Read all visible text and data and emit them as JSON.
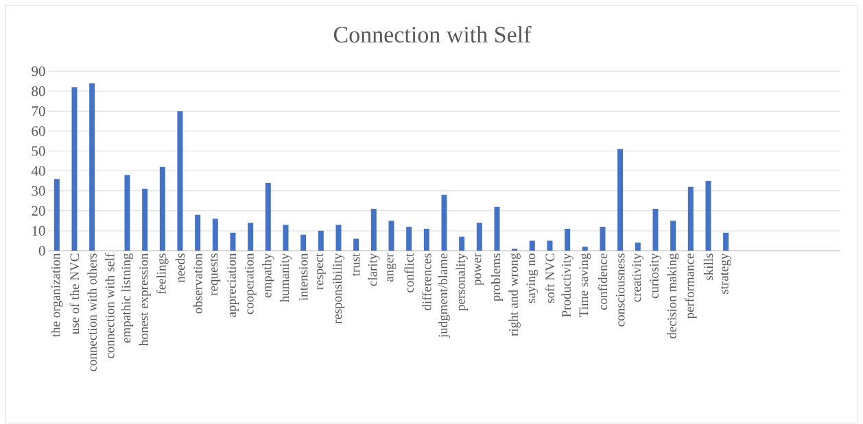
{
  "chart_data": {
    "type": "bar",
    "title": "Connection with Self",
    "color": "#4472c4",
    "categories": [
      "the organization",
      "use of the NVC",
      "connection with others",
      "connection with self",
      "empathic listning",
      "honest expression",
      "feelings",
      "needs",
      "observation",
      "requests",
      "appreciation",
      "cooperation",
      "empathy",
      "humanity",
      "intension",
      "respect",
      "responsibility",
      "trust",
      "clarity",
      "anger",
      "conflict",
      "differences",
      "judgment/blame",
      "personality",
      "power",
      "problems",
      "right and wrong",
      "saying no",
      "soft NVC",
      "Productivity",
      "Time saving",
      "confidence",
      "consciousness",
      "creativity",
      "curiosity",
      "decision making",
      "performance",
      "skills",
      "strategy",
      null,
      null,
      null,
      null,
      null,
      null
    ],
    "values": [
      36,
      82,
      84,
      0,
      38,
      31,
      42,
      70,
      18,
      16,
      9,
      14,
      34,
      13,
      8,
      10,
      13,
      6,
      21,
      15,
      12,
      11,
      28,
      7,
      14,
      22,
      1,
      5,
      5,
      11,
      2,
      12,
      51,
      4,
      21,
      15,
      32,
      35,
      9,
      null,
      null,
      null,
      null,
      null,
      null
    ],
    "ylim": [
      0,
      90
    ],
    "yticks": [
      0,
      10,
      20,
      30,
      40,
      50,
      60,
      70,
      80,
      90
    ],
    "grid": "y"
  }
}
